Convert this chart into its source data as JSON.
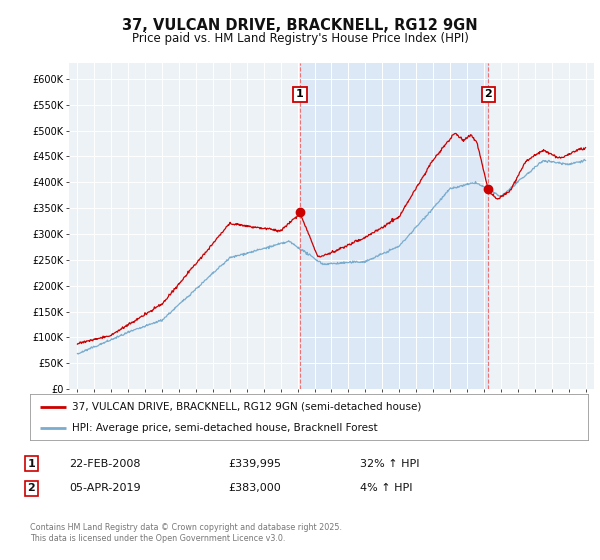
{
  "title": "37, VULCAN DRIVE, BRACKNELL, RG12 9GN",
  "subtitle": "Price paid vs. HM Land Registry's House Price Index (HPI)",
  "ylim": [
    0,
    630000
  ],
  "yticks": [
    0,
    50000,
    100000,
    150000,
    200000,
    250000,
    300000,
    350000,
    400000,
    450000,
    500000,
    550000,
    600000
  ],
  "ytick_labels": [
    "£0",
    "£50K",
    "£100K",
    "£150K",
    "£200K",
    "£250K",
    "£300K",
    "£350K",
    "£400K",
    "£450K",
    "£500K",
    "£550K",
    "£600K"
  ],
  "background_color": "#ffffff",
  "plot_bg_color": "#edf2f7",
  "shade_color": "#dce8f5",
  "marker1_x": 2008.14,
  "marker2_x": 2019.26,
  "transaction1_date": "22-FEB-2008",
  "transaction1_price": "£339,995",
  "transaction1_hpi": "32% ↑ HPI",
  "transaction2_date": "05-APR-2019",
  "transaction2_price": "£383,000",
  "transaction2_hpi": "4% ↑ HPI",
  "legend_line1": "37, VULCAN DRIVE, BRACKNELL, RG12 9GN (semi-detached house)",
  "legend_line2": "HPI: Average price, semi-detached house, Bracknell Forest",
  "red_color": "#cc0000",
  "blue_color": "#7aacce",
  "copyright_text": "Contains HM Land Registry data © Crown copyright and database right 2025.\nThis data is licensed under the Open Government Licence v3.0.",
  "xmin": 1994.5,
  "xmax": 2025.5,
  "xticks": [
    1995,
    1996,
    1997,
    1998,
    1999,
    2000,
    2001,
    2002,
    2003,
    2004,
    2005,
    2006,
    2007,
    2008,
    2009,
    2010,
    2011,
    2012,
    2013,
    2014,
    2015,
    2016,
    2017,
    2018,
    2019,
    2020,
    2021,
    2022,
    2023,
    2024,
    2025
  ]
}
